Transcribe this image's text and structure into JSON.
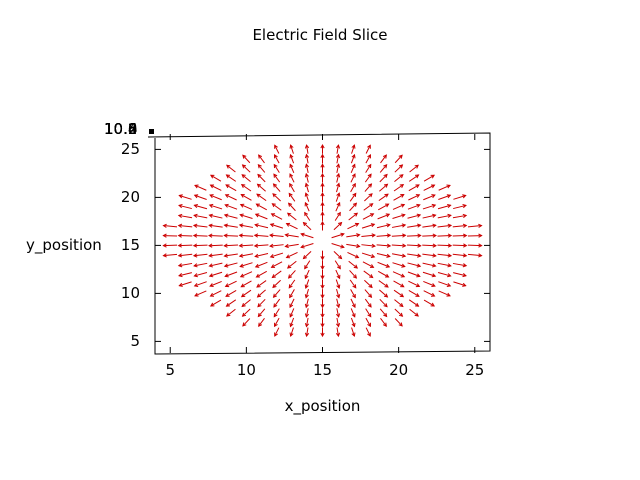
{
  "chart_data": {
    "type": "vector-field",
    "title": "Electric Field Slice",
    "xlabel": "x_position",
    "ylabel": "y_position",
    "xlim": [
      4,
      26
    ],
    "ylim": [
      4,
      26.5
    ],
    "xticks": [
      "5",
      "10",
      "15",
      "20",
      "25"
    ],
    "yticks": [
      "5",
      "10",
      "15",
      "20",
      "25"
    ],
    "ztick_labels": [
      "10.0",
      "10.2",
      "10.4",
      "10.6",
      "10.8"
    ],
    "source_point": [
      15,
      15.5
    ],
    "arrow_color": "#cc0000",
    "grid": false
  }
}
